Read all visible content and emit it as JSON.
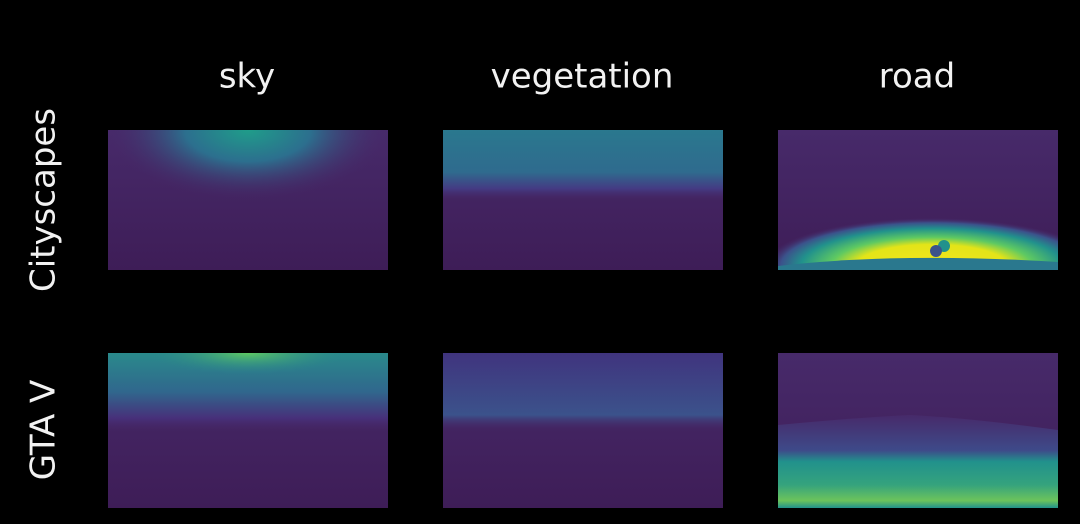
{
  "columns": [
    "sky",
    "vegetation",
    "road"
  ],
  "rows": [
    "Cityscapes",
    "GTA V"
  ]
}
